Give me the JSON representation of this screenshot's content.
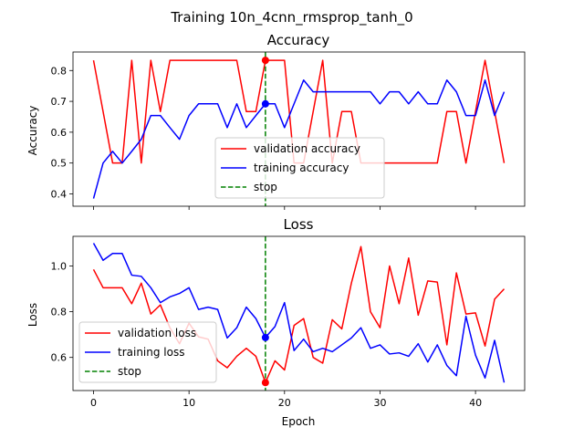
{
  "figure_title": "Training 10n_4cnn_rmsprop_tanh_0",
  "colors": {
    "validation": "#ff0000",
    "training": "#0000ff",
    "stop": "#008000"
  },
  "chart_data": [
    {
      "type": "line",
      "title": "Accuracy",
      "xlabel": "",
      "ylabel": "Accuracy",
      "xlim": [
        -2.15,
        45.15
      ],
      "ylim": [
        0.36,
        0.86
      ],
      "xticks": [
        0,
        10,
        20,
        30,
        40
      ],
      "yticks": [
        0.4,
        0.5,
        0.6,
        0.7,
        0.8
      ],
      "ytick_labels": [
        "0.4",
        "0.5",
        "0.6",
        "0.7",
        "0.8"
      ],
      "show_xtick_labels": false,
      "legend_position": "lower-center",
      "stop_epoch": 18,
      "stop_markers": [
        {
          "series": "validation accuracy",
          "value": 0.833
        },
        {
          "series": "training accuracy",
          "value": 0.692
        }
      ],
      "series": [
        {
          "name": "validation accuracy",
          "color": "#ff0000",
          "style": "solid",
          "values": [
            0.833,
            0.667,
            0.5,
            0.5,
            0.833,
            0.5,
            0.833,
            0.667,
            0.833,
            0.833,
            0.833,
            0.833,
            0.833,
            0.833,
            0.833,
            0.833,
            0.667,
            0.667,
            0.833,
            0.833,
            0.833,
            0.5,
            0.5,
            0.667,
            0.833,
            0.5,
            0.667,
            0.667,
            0.5,
            0.5,
            0.5,
            0.5,
            0.5,
            0.5,
            0.5,
            0.5,
            0.5,
            0.667,
            0.667,
            0.5,
            0.667,
            0.833,
            0.667,
            0.5
          ]
        },
        {
          "name": "training accuracy",
          "color": "#0000ff",
          "style": "solid",
          "values": [
            0.385,
            0.5,
            0.538,
            0.5,
            0.538,
            0.577,
            0.654,
            0.654,
            0.615,
            0.577,
            0.654,
            0.692,
            0.692,
            0.692,
            0.615,
            0.692,
            0.615,
            0.654,
            0.692,
            0.692,
            0.615,
            0.692,
            0.769,
            0.731,
            0.731,
            0.731,
            0.731,
            0.731,
            0.731,
            0.731,
            0.692,
            0.731,
            0.731,
            0.692,
            0.731,
            0.692,
            0.692,
            0.769,
            0.731,
            0.654,
            0.654,
            0.769,
            0.654,
            0.731
          ]
        },
        {
          "name": "stop",
          "color": "#008000",
          "style": "dashed",
          "values": []
        }
      ]
    },
    {
      "type": "line",
      "title": "Loss",
      "xlabel": "Epoch",
      "ylabel": "Loss",
      "xlim": [
        -2.15,
        45.15
      ],
      "ylim": [
        0.455,
        1.13
      ],
      "xticks": [
        0,
        10,
        20,
        30,
        40
      ],
      "xtick_labels": [
        "0",
        "10",
        "20",
        "30",
        "40"
      ],
      "yticks": [
        0.6,
        0.8,
        1.0
      ],
      "ytick_labels": [
        "0.6",
        "0.8",
        "1.0"
      ],
      "show_xtick_labels": true,
      "legend_position": "lower-left",
      "stop_epoch": 18,
      "stop_markers": [
        {
          "series": "validation loss",
          "value": 0.49
        },
        {
          "series": "training loss",
          "value": 0.687
        }
      ],
      "series": [
        {
          "name": "validation loss",
          "color": "#ff0000",
          "style": "solid",
          "values": [
            0.985,
            0.905,
            0.905,
            0.905,
            0.835,
            0.925,
            0.79,
            0.83,
            0.73,
            0.66,
            0.75,
            0.69,
            0.68,
            0.585,
            0.555,
            0.605,
            0.64,
            0.605,
            0.49,
            0.585,
            0.545,
            0.74,
            0.77,
            0.6,
            0.575,
            0.765,
            0.725,
            0.925,
            1.085,
            0.8,
            0.73,
            1.0,
            0.835,
            1.035,
            0.785,
            0.935,
            0.93,
            0.655,
            0.97,
            0.79,
            0.795,
            0.65,
            0.855,
            0.9
          ]
        },
        {
          "name": "training loss",
          "color": "#0000ff",
          "style": "solid",
          "values": [
            1.1,
            1.025,
            1.055,
            1.055,
            0.96,
            0.955,
            0.905,
            0.84,
            0.865,
            0.88,
            0.905,
            0.81,
            0.82,
            0.81,
            0.685,
            0.73,
            0.82,
            0.77,
            0.687,
            0.735,
            0.84,
            0.63,
            0.68,
            0.625,
            0.64,
            0.625,
            0.655,
            0.685,
            0.73,
            0.64,
            0.655,
            0.615,
            0.62,
            0.605,
            0.66,
            0.58,
            0.655,
            0.565,
            0.52,
            0.78,
            0.61,
            0.51,
            0.675,
            0.49
          ]
        },
        {
          "name": "stop",
          "color": "#008000",
          "style": "dashed",
          "values": []
        }
      ]
    }
  ]
}
